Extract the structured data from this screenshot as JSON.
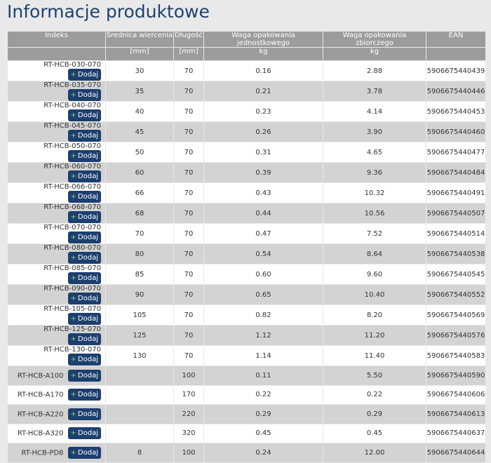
{
  "header": {
    "title": "Informacje produktowe"
  },
  "table": {
    "button_label": "Dodaj",
    "columns": [
      {
        "name": "Indeks",
        "unit": null
      },
      {
        "name": "Średnica wiercenia",
        "unit": "[mm]"
      },
      {
        "name": "Długość",
        "unit": "[mm]"
      },
      {
        "name": "Waga opakowania jednostkowego",
        "unit": "kg"
      },
      {
        "name": "Waga opakowania zbiorczego",
        "unit": "kg"
      },
      {
        "name": "EAN",
        "unit": null
      }
    ],
    "rows": [
      [
        "RT-HCB-030-070",
        "30",
        "70",
        "0.16",
        "2.88",
        "5906675440439"
      ],
      [
        "RT-HCB-035-070",
        "35",
        "70",
        "0.21",
        "3.78",
        "5906675440446"
      ],
      [
        "RT-HCB-040-070",
        "40",
        "70",
        "0.23",
        "4.14",
        "5906675440453"
      ],
      [
        "RT-HCB-045-070",
        "45",
        "70",
        "0.26",
        "3.90",
        "5906675440460"
      ],
      [
        "RT-HCB-050-070",
        "50",
        "70",
        "0.31",
        "4.65",
        "5906675440477"
      ],
      [
        "RT-HCB-060-070",
        "60",
        "70",
        "0.39",
        "9.36",
        "5906675440484"
      ],
      [
        "RT-HCB-066-070",
        "66",
        "70",
        "0.43",
        "10.32",
        "5906675440491"
      ],
      [
        "RT-HCB-068-070",
        "68",
        "70",
        "0.44",
        "10.56",
        "5906675440507"
      ],
      [
        "RT-HCB-070-070",
        "70",
        "70",
        "0.47",
        "7.52",
        "5906675440514"
      ],
      [
        "RT-HCB-080-070",
        "80",
        "70",
        "0.54",
        "8.64",
        "5906675440538"
      ],
      [
        "RT-HCB-085-070",
        "85",
        "70",
        "0.60",
        "9.60",
        "5906675440545"
      ],
      [
        "RT-HCB-090-070",
        "90",
        "70",
        "0.65",
        "10.40",
        "5906675440552"
      ],
      [
        "RT-HCB-105-070",
        "105",
        "70",
        "0.82",
        "8.20",
        "5906675440569"
      ],
      [
        "RT-HCB-125-070",
        "125",
        "70",
        "1.12",
        "11.20",
        "5906675440576"
      ],
      [
        "RT-HCB-130-070",
        "130",
        "70",
        "1.14",
        "11.40",
        "5906675440583"
      ],
      [
        "RT-HCB-A100",
        null,
        "100",
        "0.11",
        "5.50",
        "5906675440590"
      ],
      [
        "RT-HCB-A170",
        null,
        "170",
        "0.22",
        "0.22",
        "5906675440606"
      ],
      [
        "RT-HCB-A220",
        null,
        "220",
        "0.29",
        "0.29",
        "5906675440613"
      ],
      [
        "RT-HCB-A320",
        null,
        "320",
        "0.45",
        "0.45",
        "5906675440637"
      ],
      [
        "RT-HCB-PD8",
        "8",
        "100",
        "0.24",
        "12.00",
        "5906675440644"
      ]
    ]
  }
}
